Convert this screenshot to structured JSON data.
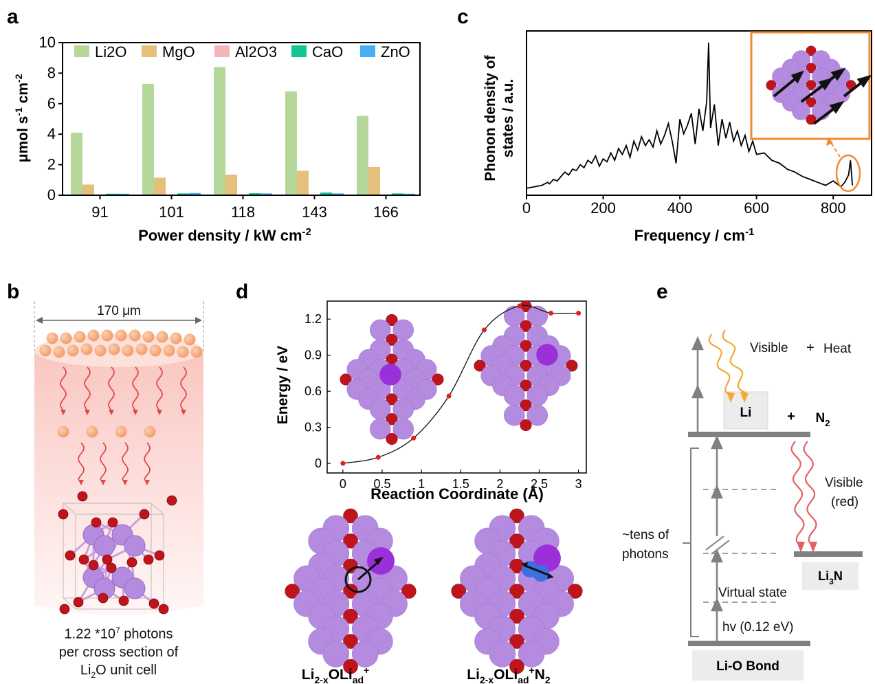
{
  "panel_letters": {
    "a": "a",
    "b": "b",
    "c": "c",
    "d": "d",
    "e": "e"
  },
  "chart_data": [
    {
      "id": "a",
      "type": "bar",
      "xlabel": "Power density / kW cm",
      "xlabel_sup": "-2",
      "ylabel": "μmol s",
      "ylabel_sup1": "-1",
      "ylabel_mid": " cm",
      "ylabel_sup2": "-2",
      "categories": [
        "91",
        "101",
        "118",
        "143",
        "166"
      ],
      "ylim": [
        0,
        10
      ],
      "yticks": [
        "0",
        "2",
        "4",
        "6",
        "8",
        "10"
      ],
      "legend_position": "top",
      "series": [
        {
          "name": "Li2O",
          "color": "#b5d89a",
          "values": [
            4.1,
            7.3,
            8.4,
            6.8,
            5.2
          ]
        },
        {
          "name": "MgO",
          "color": "#e5c07c",
          "values": [
            0.7,
            1.15,
            1.35,
            1.6,
            1.85
          ]
        },
        {
          "name": "Al2O3",
          "color": "#f5b5b8",
          "values": [
            0.05,
            0.05,
            0.05,
            0.05,
            0.05
          ]
        },
        {
          "name": "CaO",
          "color": "#10c694",
          "values": [
            0.1,
            0.12,
            0.13,
            0.18,
            0.12
          ]
        },
        {
          "name": "ZnO",
          "color": "#48b0f0",
          "values": [
            0.1,
            0.15,
            0.12,
            0.12,
            0.1
          ]
        }
      ]
    },
    {
      "id": "c",
      "type": "line",
      "xlabel": "Frequency / cm",
      "xlabel_sup": "-1",
      "ylabel_line1": "Phonon density of",
      "ylabel_line2": "states / a.u.",
      "xlim": [
        0,
        900
      ],
      "xticks": [
        "0",
        "200",
        "400",
        "600",
        "800"
      ],
      "series": [
        {
          "name": "",
          "color": "#000000",
          "x": [
            0,
            20,
            40,
            55,
            60,
            70,
            80,
            90,
            100,
            110,
            120,
            130,
            140,
            150,
            160,
            170,
            180,
            190,
            200,
            210,
            220,
            230,
            240,
            250,
            260,
            270,
            280,
            290,
            300,
            310,
            320,
            330,
            340,
            350,
            360,
            370,
            380,
            390,
            400,
            410,
            420,
            430,
            440,
            450,
            460,
            470,
            475,
            480,
            490,
            500,
            510,
            520,
            530,
            540,
            550,
            560,
            570,
            580,
            590,
            600,
            620,
            640,
            660,
            680,
            700,
            720,
            740,
            760,
            780,
            800,
            820,
            830,
            840,
            845,
            850
          ],
          "y": [
            0.01,
            0.02,
            0.03,
            0.05,
            0.04,
            0.07,
            0.06,
            0.09,
            0.12,
            0.1,
            0.14,
            0.13,
            0.17,
            0.15,
            0.2,
            0.18,
            0.23,
            0.16,
            0.21,
            0.19,
            0.25,
            0.2,
            0.28,
            0.24,
            0.3,
            0.22,
            0.33,
            0.27,
            0.36,
            0.3,
            0.34,
            0.29,
            0.4,
            0.31,
            0.37,
            0.45,
            0.33,
            0.18,
            0.48,
            0.38,
            0.44,
            0.52,
            0.31,
            0.55,
            0.4,
            0.6,
            1.0,
            0.42,
            0.58,
            0.3,
            0.48,
            0.35,
            0.46,
            0.33,
            0.4,
            0.3,
            0.37,
            0.26,
            0.33,
            0.24,
            0.25,
            0.2,
            0.18,
            0.14,
            0.12,
            0.09,
            0.07,
            0.05,
            0.03,
            0.06,
            0.02,
            0.05,
            0.1,
            0.2,
            0.03
          ]
        }
      ],
      "inset_present": true
    },
    {
      "id": "d",
      "type": "line",
      "xlabel": "Reaction Coordinate (Å)",
      "ylabel": "Energy / eV",
      "xlim": [
        -0.2,
        3.1
      ],
      "ylim": [
        -0.08,
        1.35
      ],
      "xticks": [
        "0",
        "0.5",
        "1",
        "1.5",
        "2",
        "2.5",
        "3"
      ],
      "yticks": [
        "0",
        "0.3",
        "0.6",
        "0.9",
        "1.2"
      ],
      "series": [
        {
          "name": "",
          "color": "#e02020",
          "x": [
            0,
            0.45,
            0.9,
            1.35,
            1.8,
            2.25,
            2.65,
            3.0
          ],
          "y": [
            0,
            0.05,
            0.21,
            0.56,
            1.11,
            1.31,
            1.25,
            1.25
          ]
        }
      ]
    }
  ],
  "panel_b": {
    "width_label": "170 μm",
    "caption_line1_a": "1.22 *10",
    "caption_line1_sup": "7",
    "caption_line1_b": " photons",
    "caption_line2": "per cross section of",
    "caption_line3_a": "Li",
    "caption_line3_sub": "2",
    "caption_line3_b": "O unit cell"
  },
  "panel_d": {
    "label_left_a": "Li",
    "label_left_sub1": "2-x",
    "label_left_b": "OLi",
    "label_left_sub2": "ad",
    "label_left_sup": "+",
    "label_right_a": "Li",
    "label_right_sub1": "2-x",
    "label_right_b": "OLi",
    "label_right_sub2": "ad",
    "label_right_sup": "+",
    "label_right_c": "N",
    "label_right_sub3": "2"
  },
  "panel_e": {
    "visible_top": "Visible",
    "plus_heat": "+",
    "heat": "Heat",
    "li": "Li",
    "plus_n2": "+",
    "n2_a": "N",
    "n2_sub": "2",
    "visible_red_1": "Visible",
    "visible_red_2": "(red)",
    "tens_1": "~tens of",
    "tens_2": "photons",
    "li3n_a": "Li",
    "li3n_sub": "3",
    "li3n_b": "N",
    "virtual_state": "Virtual state",
    "hv": "hv (0.12 eV)",
    "lio_bond": "Li-O Bond"
  },
  "colors": {
    "atom_li": "#b58be0",
    "atom_o": "#c0141c",
    "atom_highlight": "#9b30d8",
    "atom_n": "#3a70e0",
    "photon": "#f5a77a",
    "wave": "#e04848",
    "orange": "#f08a30",
    "gray": "#808080"
  }
}
